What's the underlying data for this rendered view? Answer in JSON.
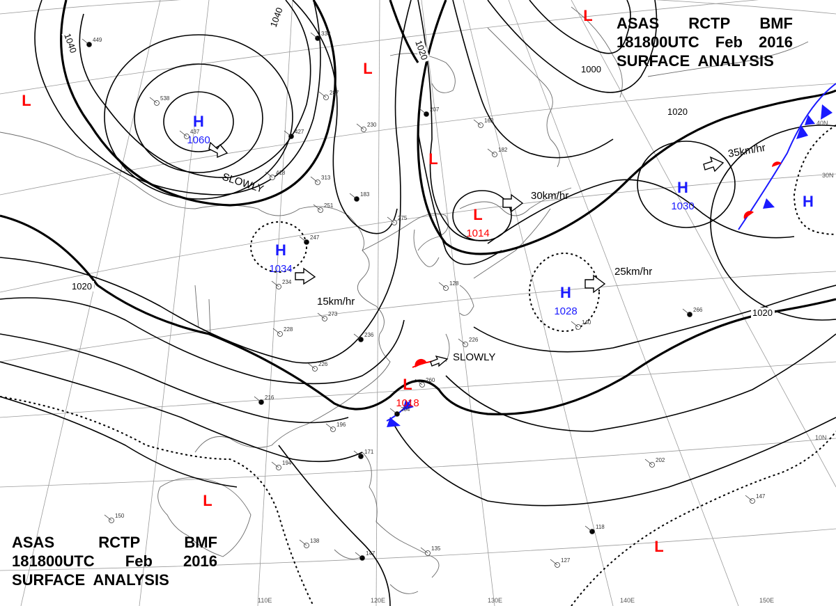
{
  "header_top_right": {
    "line1": [
      "ASAS",
      "RCTP",
      "BMF"
    ],
    "line2": [
      "181800UTC",
      "Feb",
      "2016"
    ],
    "line3": "SURFACE  ANALYSIS"
  },
  "header_bottom_left": {
    "line1": [
      "ASAS",
      "RCTP",
      "BMF"
    ],
    "line2": [
      "181800UTC",
      "Feb",
      "2016"
    ],
    "line3": "SURFACE  ANALYSIS"
  },
  "colors": {
    "high": "#1a1aff",
    "low": "#ff0000",
    "line": "#000000",
    "grid": "#9a9a9a",
    "coast": "#6a6a6a",
    "front_cold": "#1a1aff",
    "front_warm": "#ff0000"
  },
  "pressure_centers": [
    {
      "kind": "H",
      "value": "1060"
    },
    {
      "kind": "H",
      "value": "1034"
    },
    {
      "kind": "L",
      "value": "1014"
    },
    {
      "kind": "H",
      "value": "1028"
    },
    {
      "kind": "H",
      "value": "1030"
    },
    {
      "kind": "H",
      "value": ""
    },
    {
      "kind": "L",
      "value": "1018"
    },
    {
      "kind": "L",
      "value": ""
    },
    {
      "kind": "L",
      "value": ""
    },
    {
      "kind": "L",
      "value": ""
    },
    {
      "kind": "L",
      "value": ""
    },
    {
      "kind": "L",
      "value": ""
    },
    {
      "kind": "L",
      "value": ""
    }
  ],
  "movements": [
    "SLOWLY",
    "15km/hr",
    "30km/hr",
    "25km/hr",
    "35km/hr",
    "SLOWLY"
  ],
  "isobar_labels": [
    "1040",
    "1040",
    "1020",
    "1020",
    "1000",
    "1020",
    "1020"
  ],
  "lat_labels": [
    "40N",
    "30N",
    "10N"
  ],
  "lon_labels": [
    "110E",
    "120E",
    "130E",
    "140E",
    "150E"
  ],
  "station_samples": [
    "449",
    "538",
    "437",
    "427",
    "418",
    "313",
    "338",
    "287",
    "230",
    "207",
    "162",
    "182",
    "183",
    "275",
    "251",
    "247",
    "234",
    "273",
    "236",
    "228",
    "226",
    "216",
    "196",
    "194",
    "171",
    "150",
    "138",
    "147",
    "135",
    "140",
    "266",
    "226",
    "260",
    "204",
    "202",
    "147",
    "118",
    "127",
    "128"
  ]
}
